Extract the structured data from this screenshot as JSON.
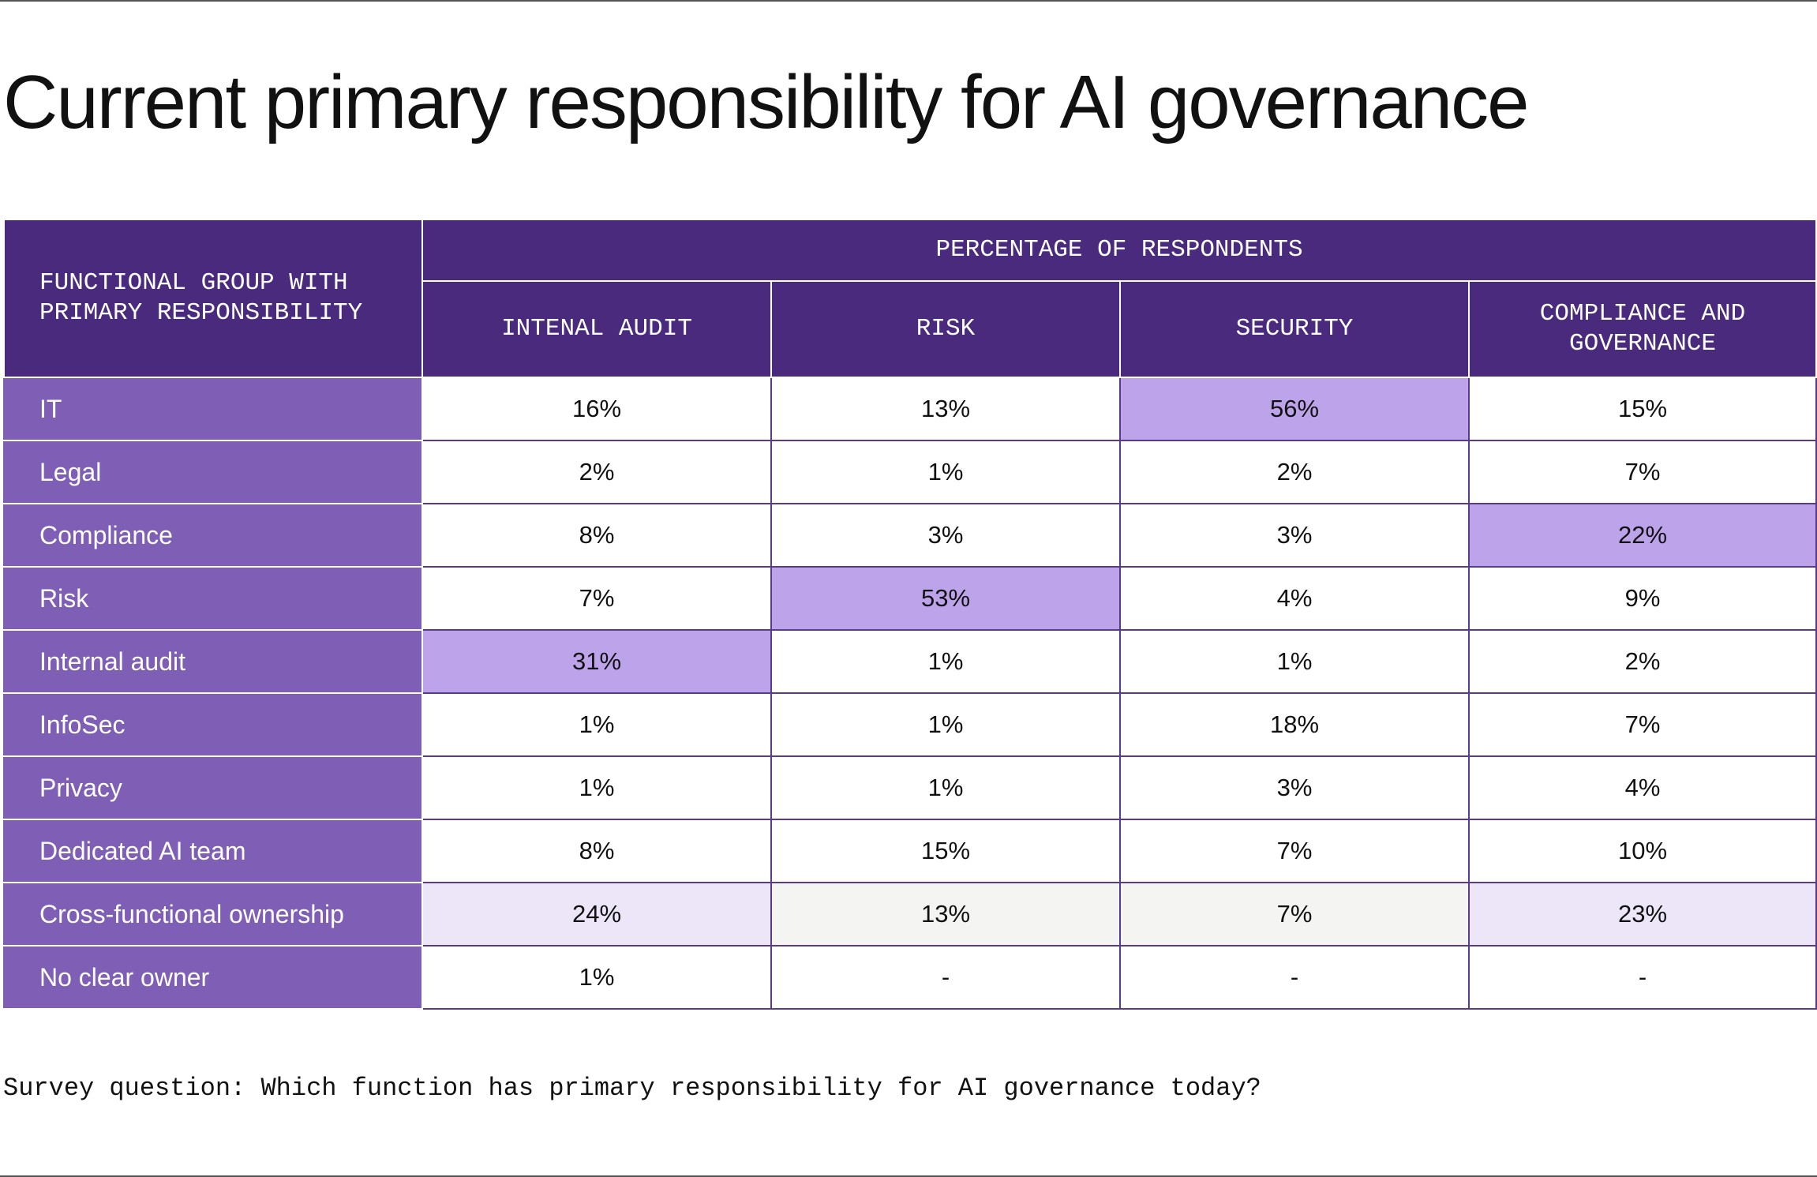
{
  "title": "Current primary responsibility for AI governance",
  "footnote": "Survey question: Which function has primary responsibility for AI governance today?",
  "colors": {
    "header_bg": "#4a2a7c",
    "row_label_bg": "#7f5fb6",
    "highlight_strong": "#bda4ea",
    "highlight_light": "#ece6f8",
    "highlight_grey": "#f4f4f2",
    "cell_border": "#5a3a8c"
  },
  "chart_data": {
    "type": "table",
    "title": "Current primary responsibility for AI governance",
    "row_header": "FUNCTIONAL GROUP WITH PRIMARY RESPONSIBILITY",
    "group_header": "PERCENTAGE OF RESPONDENTS",
    "columns": [
      "INTENAL AUDIT",
      "RISK",
      "SECURITY",
      "COMPLIANCE AND GOVERNANCE"
    ],
    "rows": [
      {
        "label": "IT",
        "values": [
          "16%",
          "13%",
          "56%",
          "15%"
        ],
        "highlight": [
          "",
          "",
          "strong",
          ""
        ]
      },
      {
        "label": "Legal",
        "values": [
          "2%",
          "1%",
          "2%",
          "7%"
        ],
        "highlight": [
          "",
          "",
          "",
          ""
        ]
      },
      {
        "label": "Compliance",
        "values": [
          "8%",
          "3%",
          "3%",
          "22%"
        ],
        "highlight": [
          "",
          "",
          "",
          "strong"
        ]
      },
      {
        "label": "Risk",
        "values": [
          "7%",
          "53%",
          "4%",
          "9%"
        ],
        "highlight": [
          "",
          "strong",
          "",
          ""
        ]
      },
      {
        "label": "Internal audit",
        "values": [
          "31%",
          "1%",
          "1%",
          "2%"
        ],
        "highlight": [
          "strong",
          "",
          "",
          ""
        ]
      },
      {
        "label": "InfoSec",
        "values": [
          "1%",
          "1%",
          "18%",
          "7%"
        ],
        "highlight": [
          "",
          "",
          "",
          ""
        ]
      },
      {
        "label": "Privacy",
        "values": [
          "1%",
          "1%",
          "3%",
          "4%"
        ],
        "highlight": [
          "",
          "",
          "",
          ""
        ]
      },
      {
        "label": "Dedicated AI team",
        "values": [
          "8%",
          "15%",
          "7%",
          "10%"
        ],
        "highlight": [
          "",
          "",
          "",
          ""
        ]
      },
      {
        "label": "Cross-functional ownership",
        "values": [
          "24%",
          "13%",
          "7%",
          "23%"
        ],
        "highlight": [
          "light",
          "grey",
          "grey",
          "light"
        ]
      },
      {
        "label": "No clear owner",
        "values": [
          "1%",
          "-",
          "-",
          "-"
        ],
        "highlight": [
          "",
          "",
          "",
          ""
        ]
      }
    ]
  }
}
